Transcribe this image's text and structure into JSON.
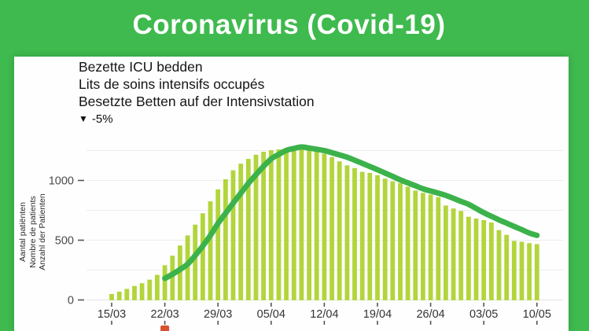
{
  "header": {
    "title": "Coronavirus (Covid-19)"
  },
  "panel": {
    "titles": [
      "Bezette ICU bedden",
      "Lits de soins intensifs occupés",
      "Besetzte Betten auf der Intensivstation"
    ],
    "change_indicator": {
      "arrow": "▼",
      "value": "-5%"
    }
  },
  "marker": {
    "date": "22/03"
  },
  "chart_data": {
    "type": "bar",
    "title": "Bezette ICU bedden / Lits de soins intensifs occupés / Besetzte Betten auf der Intensivstation",
    "ylabel_lines": [
      "Aantal patiënten",
      "Nombre de patients",
      "Anzahl der Patienten"
    ],
    "xlabel": "",
    "ylim": [
      0,
      1350
    ],
    "y_ticks": [
      0,
      500,
      1000
    ],
    "grid_interval": 250,
    "grid": true,
    "legend": "none",
    "x_tick_labels": [
      "15/03",
      "22/03",
      "29/03",
      "05/04",
      "12/04",
      "19/04",
      "26/04",
      "03/05",
      "10/05"
    ],
    "categories": [
      "15/03",
      "16/03",
      "17/03",
      "18/03",
      "19/03",
      "20/03",
      "21/03",
      "22/03",
      "23/03",
      "24/03",
      "25/03",
      "26/03",
      "27/03",
      "28/03",
      "29/03",
      "30/03",
      "31/03",
      "01/04",
      "02/04",
      "03/04",
      "04/04",
      "05/04",
      "06/04",
      "07/04",
      "08/04",
      "09/04",
      "10/04",
      "11/04",
      "12/04",
      "13/04",
      "14/04",
      "15/04",
      "16/04",
      "17/04",
      "18/04",
      "19/04",
      "20/04",
      "21/04",
      "22/04",
      "23/04",
      "24/04",
      "25/04",
      "26/04",
      "27/04",
      "28/04",
      "29/04",
      "30/04",
      "01/05",
      "02/05",
      "03/05",
      "04/05",
      "05/05",
      "06/05",
      "07/05",
      "08/05",
      "09/05",
      "10/05"
    ],
    "values": [
      50,
      70,
      93,
      117,
      140,
      170,
      210,
      290,
      370,
      455,
      540,
      630,
      725,
      825,
      925,
      1010,
      1085,
      1140,
      1180,
      1215,
      1240,
      1253,
      1260,
      1266,
      1268,
      1262,
      1253,
      1243,
      1225,
      1195,
      1160,
      1126,
      1103,
      1072,
      1063,
      1045,
      1015,
      993,
      978,
      948,
      916,
      896,
      882,
      860,
      790,
      765,
      745,
      696,
      681,
      668,
      648,
      585,
      545,
      494,
      487,
      475,
      467
    ],
    "trend_line": {
      "name": "smoothed trend",
      "start_index": 7,
      "values": [
        180,
        215,
        255,
        300,
        372,
        452,
        540,
        640,
        725,
        810,
        893,
        975,
        1048,
        1118,
        1180,
        1218,
        1252,
        1268,
        1280,
        1271,
        1261,
        1250,
        1232,
        1214,
        1195,
        1169,
        1143,
        1117,
        1090,
        1062,
        1034,
        1005,
        980,
        955,
        930,
        912,
        894,
        875,
        850,
        825,
        800,
        765,
        730,
        700,
        670,
        643,
        615,
        588,
        560,
        540
      ]
    },
    "colors": {
      "background": "#3fba4e",
      "bar": "#b2d53c",
      "line": "#3cb24b",
      "marker": "#d9512e",
      "grid": "#ececec",
      "axis": "#555555",
      "text": "#151515"
    }
  }
}
